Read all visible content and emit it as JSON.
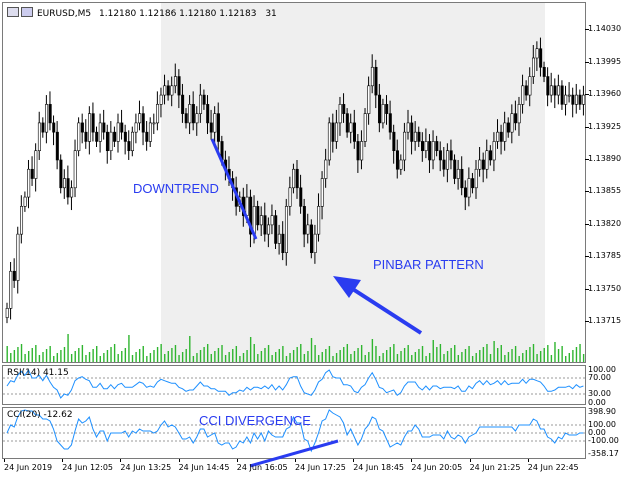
{
  "chart_header": {
    "symbol": "EURUSD,M5",
    "ohlc": "1.12180 1.12186 1.12180 1.12183",
    "count": "31"
  },
  "annotations": {
    "downtrend": "DOWNTREND",
    "pinbar": "PINBAR PATTERN",
    "cci_divergence": "CCI DIVERGENCE"
  },
  "indicators": {
    "rsi": {
      "label": "RSI(14) 41.15",
      "levels": [
        "100.00",
        "70.00",
        "30.00",
        "0.00"
      ]
    },
    "cci": {
      "label": "CCI(20) -12.62",
      "levels": [
        "398.90",
        "100.00",
        "0.00",
        "-100.00",
        "-358.17"
      ]
    }
  },
  "colors": {
    "bull": "#000000",
    "bear": "#000000",
    "volume": "#2fb52f",
    "indicator_line": "#1e90ff",
    "annotation": "#2a3cf0",
    "highlight_band": "#efefef"
  },
  "chart_data": {
    "type": "candlestick",
    "price_axis_ticks": [
      "1.14030",
      "1.13995",
      "1.13960",
      "1.13925",
      "1.13890",
      "1.13855",
      "1.13820",
      "1.13785",
      "1.13750",
      "1.13715"
    ],
    "time_axis_ticks": [
      "24 Jun 2019",
      "24 Jun 12:05",
      "24 Jun 13:25",
      "24 Jun 14:45",
      "24 Jun 16:05",
      "24 Jun 17:25",
      "24 Jun 18:45",
      "24 Jun 20:05",
      "24 Jun 21:25",
      "24 Jun 22:45"
    ],
    "ylim": [
      1.13698,
      1.14055
    ],
    "closes": [
      1.1373,
      1.1377,
      1.1376,
      1.1381,
      1.1384,
      1.1385,
      1.1388,
      1.1387,
      1.139,
      1.1393,
      1.1392,
      1.1395,
      1.1393,
      1.1392,
      1.1389,
      1.1386,
      1.1387,
      1.1385,
      1.1386,
      1.139,
      1.1393,
      1.1392,
      1.1391,
      1.1394,
      1.1392,
      1.1391,
      1.1393,
      1.1392,
      1.139,
      1.1392,
      1.1391,
      1.1393,
      1.1392,
      1.1391,
      1.139,
      1.1392,
      1.1393,
      1.1394,
      1.1392,
      1.1391,
      1.1393,
      1.1393,
      1.1395,
      1.1396,
      1.1397,
      1.1396,
      1.1397,
      1.1398,
      1.1396,
      1.1394,
      1.1393,
      1.1395,
      1.1393,
      1.1394,
      1.1396,
      1.1395,
      1.1393,
      1.1392,
      1.1394,
      1.1391,
      1.1389,
      1.1388,
      1.1387,
      1.1386,
      1.1384,
      1.1385,
      1.1383,
      1.1385,
      1.1381,
      1.1384,
      1.1382,
      1.1383,
      1.1381,
      1.1382,
      1.1383,
      1.138,
      1.1381,
      1.1379,
      1.1384,
      1.1386,
      1.1388,
      1.1386,
      1.1384,
      1.1381,
      1.1382,
      1.1379,
      1.1381,
      1.1384,
      1.1387,
      1.1389,
      1.1393,
      1.1391,
      1.1393,
      1.1395,
      1.1394,
      1.1392,
      1.1393,
      1.1391,
      1.1389,
      1.1391,
      1.1394,
      1.1397,
      1.1399,
      1.1396,
      1.1393,
      1.1395,
      1.1394,
      1.1392,
      1.139,
      1.1388,
      1.1389,
      1.1392,
      1.1393,
      1.1391,
      1.1392,
      1.1391,
      1.139,
      1.1391,
      1.1389,
      1.1391,
      1.139,
      1.1389,
      1.1388,
      1.139,
      1.1389,
      1.1387,
      1.1388,
      1.1386,
      1.1385,
      1.1387,
      1.1386,
      1.1388,
      1.1389,
      1.1388,
      1.139,
      1.1389,
      1.1391,
      1.1392,
      1.1391,
      1.1393,
      1.1392,
      1.1394,
      1.1393,
      1.1395,
      1.1397,
      1.1396,
      1.1398,
      1.14,
      1.1401,
      1.1399,
      1.1398,
      1.1396,
      1.1397,
      1.1396,
      1.1397,
      1.1395,
      1.1396,
      1.1396,
      1.1395,
      1.1396,
      1.1395,
      1.1396
    ]
  }
}
